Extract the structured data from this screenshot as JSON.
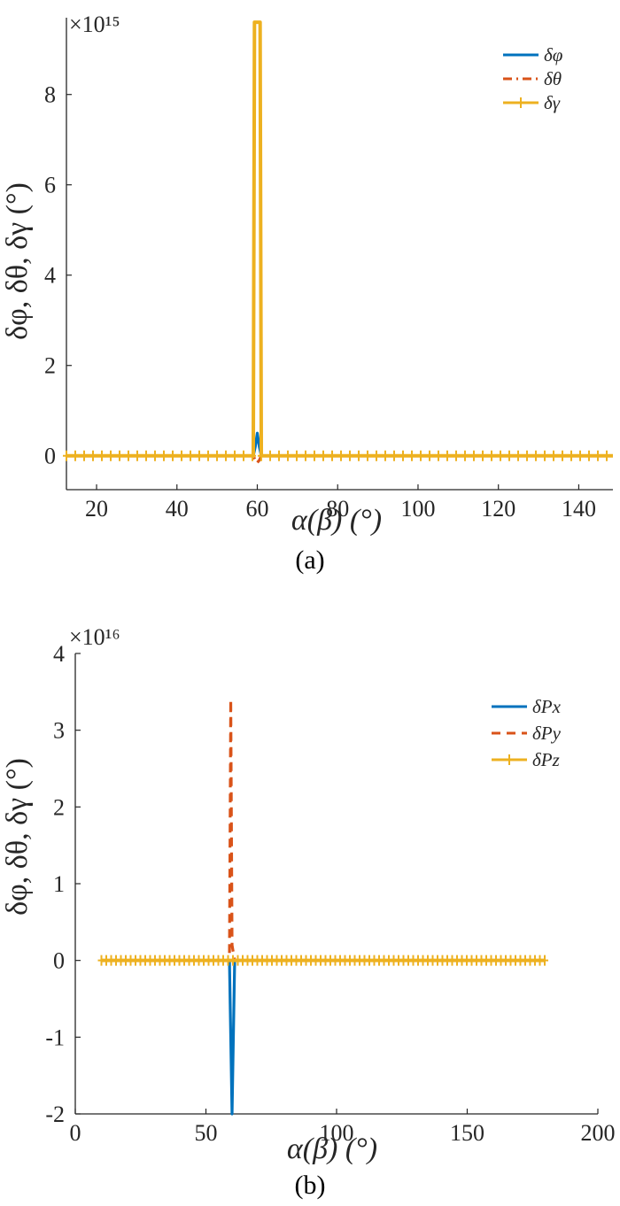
{
  "panel_a": {
    "caption": "(a)",
    "exponent": "×10¹⁵",
    "xlabel": "α(β)  (°)",
    "ylabel": "δφ, δθ, δγ  (°)"
  },
  "panel_b": {
    "caption": "(b)",
    "exponent": "×10¹⁶",
    "xlabel": "α(β)  (°)",
    "ylabel": "δφ, δθ, δγ  (°)"
  },
  "colors": {
    "blue": "#0072BD",
    "orange": "#D95319",
    "yellow": "#EDB120",
    "axis": "#262626"
  },
  "chart_data": [
    {
      "type": "line",
      "panel": "a",
      "xlabel": "α(β)  (°)",
      "ylabel": "δφ, δθ, δγ  (°)",
      "y_multiplier": "×10^15",
      "xlim": [
        12.5,
        148.5
      ],
      "ylim": [
        -0.75,
        9.7
      ],
      "xticks": [
        20,
        40,
        60,
        80,
        100,
        120,
        140
      ],
      "yticks": [
        0,
        2,
        4,
        6,
        8
      ],
      "legend_position": "top-right",
      "grid": false,
      "series": [
        {
          "name": "δφ",
          "color": "#0072BD",
          "style": "solid",
          "x": [
            12.5,
            59.0,
            59.5,
            60.0,
            60.5,
            61.0,
            148.5
          ],
          "y": [
            0,
            0,
            0.2,
            0.5,
            0.2,
            0,
            0
          ]
        },
        {
          "name": "δθ",
          "color": "#D95319",
          "style": "dashdot",
          "x": [
            12.5,
            59.0,
            59.5,
            60.0,
            60.5,
            61.0,
            148.5
          ],
          "y": [
            0,
            0,
            -0.1,
            -0.15,
            -0.1,
            0,
            0
          ]
        },
        {
          "name": "δγ",
          "color": "#EDB120",
          "style": "solid-plus",
          "x": [
            12.5,
            59.0,
            59.3,
            60.7,
            61.0,
            148.5
          ],
          "y": [
            0,
            0,
            9.6,
            9.6,
            0,
            0
          ]
        }
      ]
    },
    {
      "type": "line",
      "panel": "b",
      "xlabel": "α(β)  (°)",
      "ylabel": "δφ, δθ, δγ  (°)",
      "y_multiplier": "×10^16",
      "xlim": [
        0,
        200
      ],
      "ylim": [
        -2,
        4
      ],
      "xticks": [
        0,
        50,
        100,
        150,
        200
      ],
      "yticks": [
        -2,
        -1,
        0,
        1,
        2,
        3,
        4
      ],
      "legend_position": "top-right",
      "grid": false,
      "series": [
        {
          "name": "δPx",
          "color": "#0072BD",
          "style": "solid",
          "x": [
            10,
            59.0,
            60.0,
            61.0,
            180
          ],
          "y": [
            0,
            0,
            -2.0,
            0,
            0
          ]
        },
        {
          "name": "δPy",
          "color": "#D95319",
          "style": "dashed",
          "x": [
            10,
            59.0,
            59.5,
            60.0,
            61.0,
            180
          ],
          "y": [
            0,
            0,
            3.4,
            0.2,
            0,
            0
          ]
        },
        {
          "name": "δPz",
          "color": "#EDB120",
          "style": "solid-plus",
          "x": [
            10,
            180
          ],
          "y": [
            0,
            0
          ]
        }
      ]
    }
  ]
}
